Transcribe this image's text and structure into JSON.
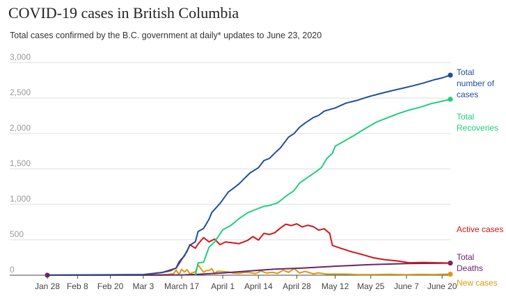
{
  "title": "COVID-19 cases in British Columbia",
  "subtitle": "Total cases confirmed by the B.C. government at daily* updates to June 23, 2020",
  "chart_data": {
    "type": "line",
    "title": "COVID-19 cases in British Columbia",
    "subtitle": "Total cases confirmed by the B.C. government at daily* updates to June 23, 2020",
    "xlabel": "",
    "ylabel": "",
    "ylim": [
      0,
      3000
    ],
    "xlim": [
      "2020-01-28",
      "2020-06-23"
    ],
    "y_ticks": [
      0,
      500,
      1000,
      1500,
      2000,
      2500,
      3000
    ],
    "y_tick_labels": [
      "0",
      "500",
      "1,000",
      "1,500",
      "2,000",
      "2,500",
      "3,000"
    ],
    "x_ticks": [
      "2020-01-28",
      "2020-02-08",
      "2020-02-20",
      "2020-03-03",
      "2020-03-17",
      "2020-04-01",
      "2020-04-14",
      "2020-04-28",
      "2020-05-12",
      "2020-05-25",
      "2020-06-07",
      "2020-06-20"
    ],
    "x_tick_labels": [
      "Jan 28",
      "Feb 8",
      "Feb 20",
      "Mar 3",
      "March 17",
      "April 1",
      "April 14",
      "April 28",
      "May 12",
      "May 25",
      "June 7",
      "June 20"
    ],
    "grid": true,
    "legend": "direct labels at right",
    "series": [
      {
        "name": "Total number of cases",
        "label_lines": [
          "Total",
          "number of",
          "cases"
        ],
        "color": "#1f4e9c",
        "end_marker": true,
        "points": [
          [
            "2020-01-28",
            1
          ],
          [
            "2020-02-20",
            5
          ],
          [
            "2020-03-03",
            9
          ],
          [
            "2020-03-06",
            21
          ],
          [
            "2020-03-10",
            39
          ],
          [
            "2020-03-13",
            64
          ],
          [
            "2020-03-15",
            103
          ],
          [
            "2020-03-16",
            186
          ],
          [
            "2020-03-17",
            231
          ],
          [
            "2020-03-18",
            271
          ],
          [
            "2020-03-19",
            348
          ],
          [
            "2020-03-20",
            424
          ],
          [
            "2020-03-22",
            472
          ],
          [
            "2020-03-23",
            617
          ],
          [
            "2020-03-25",
            659
          ],
          [
            "2020-03-26",
            725
          ],
          [
            "2020-03-27",
            792
          ],
          [
            "2020-03-28",
            884
          ],
          [
            "2020-03-30",
            970
          ],
          [
            "2020-03-31",
            1013
          ],
          [
            "2020-04-01",
            1066
          ],
          [
            "2020-04-03",
            1174
          ],
          [
            "2020-04-05",
            1229
          ],
          [
            "2020-04-07",
            1291
          ],
          [
            "2020-04-09",
            1370
          ],
          [
            "2020-04-11",
            1445
          ],
          [
            "2020-04-14",
            1517
          ],
          [
            "2020-04-16",
            1618
          ],
          [
            "2020-04-18",
            1647
          ],
          [
            "2020-04-20",
            1724
          ],
          [
            "2020-04-22",
            1795
          ],
          [
            "2020-04-25",
            1948
          ],
          [
            "2020-04-27",
            1998
          ],
          [
            "2020-04-29",
            2087
          ],
          [
            "2020-05-01",
            2145
          ],
          [
            "2020-05-04",
            2224
          ],
          [
            "2020-05-06",
            2255
          ],
          [
            "2020-05-08",
            2315
          ],
          [
            "2020-05-12",
            2360
          ],
          [
            "2020-05-16",
            2428
          ],
          [
            "2020-05-20",
            2467
          ],
          [
            "2020-05-24",
            2517
          ],
          [
            "2020-05-28",
            2558
          ],
          [
            "2020-06-01",
            2597
          ],
          [
            "2020-06-05",
            2632
          ],
          [
            "2020-06-09",
            2669
          ],
          [
            "2020-06-13",
            2709
          ],
          [
            "2020-06-17",
            2756
          ],
          [
            "2020-06-20",
            2783
          ],
          [
            "2020-06-23",
            2822
          ]
        ]
      },
      {
        "name": "Total Recoveries",
        "label_lines": [
          "Total",
          "Recoveries"
        ],
        "color": "#1fce7c",
        "end_marker": true,
        "points": [
          [
            "2020-03-22",
            0
          ],
          [
            "2020-03-23",
            173
          ],
          [
            "2020-03-25",
            183
          ],
          [
            "2020-03-27",
            396
          ],
          [
            "2020-03-29",
            469
          ],
          [
            "2020-04-01",
            641
          ],
          [
            "2020-04-04",
            704
          ],
          [
            "2020-04-07",
            800
          ],
          [
            "2020-04-10",
            879
          ],
          [
            "2020-04-13",
            926
          ],
          [
            "2020-04-16",
            973
          ],
          [
            "2020-04-18",
            983
          ],
          [
            "2020-04-21",
            1021
          ],
          [
            "2020-04-24",
            1114
          ],
          [
            "2020-04-27",
            1193
          ],
          [
            "2020-04-29",
            1300
          ],
          [
            "2020-05-02",
            1380
          ],
          [
            "2020-05-05",
            1460
          ],
          [
            "2020-05-07",
            1520
          ],
          [
            "2020-05-09",
            1650
          ],
          [
            "2020-05-11",
            1720
          ],
          [
            "2020-05-12",
            1820
          ],
          [
            "2020-05-15",
            1885
          ],
          [
            "2020-05-19",
            1975
          ],
          [
            "2020-05-23",
            2070
          ],
          [
            "2020-05-27",
            2160
          ],
          [
            "2020-05-31",
            2220
          ],
          [
            "2020-06-04",
            2280
          ],
          [
            "2020-06-08",
            2330
          ],
          [
            "2020-06-12",
            2370
          ],
          [
            "2020-06-16",
            2420
          ],
          [
            "2020-06-20",
            2455
          ],
          [
            "2020-06-23",
            2482
          ]
        ]
      },
      {
        "name": "Active cases",
        "label_lines": [
          "Active cases"
        ],
        "color": "#d0161b",
        "end_marker": false,
        "points": [
          [
            "2020-01-28",
            1
          ],
          [
            "2020-03-03",
            9
          ],
          [
            "2020-03-10",
            39
          ],
          [
            "2020-03-15",
            100
          ],
          [
            "2020-03-17",
            220
          ],
          [
            "2020-03-19",
            340
          ],
          [
            "2020-03-20",
            430
          ],
          [
            "2020-03-22",
            380
          ],
          [
            "2020-03-23",
            440
          ],
          [
            "2020-03-25",
            530
          ],
          [
            "2020-03-27",
            470
          ],
          [
            "2020-03-29",
            510
          ],
          [
            "2020-03-31",
            430
          ],
          [
            "2020-04-02",
            470
          ],
          [
            "2020-04-04",
            460
          ],
          [
            "2020-04-07",
            445
          ],
          [
            "2020-04-10",
            490
          ],
          [
            "2020-04-12",
            545
          ],
          [
            "2020-04-14",
            495
          ],
          [
            "2020-04-16",
            590
          ],
          [
            "2020-04-18",
            575
          ],
          [
            "2020-04-20",
            600
          ],
          [
            "2020-04-22",
            665
          ],
          [
            "2020-04-24",
            720
          ],
          [
            "2020-04-26",
            700
          ],
          [
            "2020-04-28",
            725
          ],
          [
            "2020-04-30",
            680
          ],
          [
            "2020-05-02",
            705
          ],
          [
            "2020-05-04",
            685
          ],
          [
            "2020-05-06",
            635
          ],
          [
            "2020-05-08",
            655
          ],
          [
            "2020-05-10",
            590
          ],
          [
            "2020-05-11",
            420
          ],
          [
            "2020-05-14",
            380
          ],
          [
            "2020-05-18",
            330
          ],
          [
            "2020-05-22",
            290
          ],
          [
            "2020-05-26",
            245
          ],
          [
            "2020-05-30",
            220
          ],
          [
            "2020-06-04",
            200
          ],
          [
            "2020-06-08",
            175
          ],
          [
            "2020-06-13",
            180
          ],
          [
            "2020-06-18",
            175
          ],
          [
            "2020-06-23",
            172
          ]
        ]
      },
      {
        "name": "Total Deaths",
        "label_lines": [
          "Total",
          "Deaths"
        ],
        "color": "#6b2368",
        "end_marker": true,
        "points": [
          [
            "2020-01-28",
            0
          ],
          [
            "2020-03-09",
            1
          ],
          [
            "2020-03-17",
            4
          ],
          [
            "2020-03-23",
            13
          ],
          [
            "2020-04-01",
            31
          ],
          [
            "2020-04-10",
            58
          ],
          [
            "2020-04-20",
            86
          ],
          [
            "2020-04-30",
            101
          ],
          [
            "2020-05-12",
            126
          ],
          [
            "2020-05-25",
            149
          ],
          [
            "2020-06-07",
            165
          ],
          [
            "2020-06-23",
            171
          ]
        ]
      },
      {
        "name": "New cases",
        "label_lines": [
          "New cases"
        ],
        "color": "#d89a0f",
        "end_marker": true,
        "points": [
          [
            "2020-01-28",
            1
          ],
          [
            "2020-03-03",
            3
          ],
          [
            "2020-03-07",
            8
          ],
          [
            "2020-03-10",
            7
          ],
          [
            "2020-03-12",
            13
          ],
          [
            "2020-03-14",
            21
          ],
          [
            "2020-03-15",
            73
          ],
          [
            "2020-03-16",
            11
          ],
          [
            "2020-03-17",
            83
          ],
          [
            "2020-03-18",
            45
          ],
          [
            "2020-03-19",
            77
          ],
          [
            "2020-03-20",
            22
          ],
          [
            "2020-03-22",
            48
          ],
          [
            "2020-03-23",
            145
          ],
          [
            "2020-03-25",
            42
          ],
          [
            "2020-03-26",
            66
          ],
          [
            "2020-03-27",
            67
          ],
          [
            "2020-03-28",
            92
          ],
          [
            "2020-03-29",
            20
          ],
          [
            "2020-03-30",
            55
          ],
          [
            "2020-04-01",
            53
          ],
          [
            "2020-04-03",
            45
          ],
          [
            "2020-04-05",
            29
          ],
          [
            "2020-04-07",
            25
          ],
          [
            "2020-04-09",
            40
          ],
          [
            "2020-04-11",
            35
          ],
          [
            "2020-04-13",
            24
          ],
          [
            "2020-04-15",
            60
          ],
          [
            "2020-04-17",
            29
          ],
          [
            "2020-04-19",
            40
          ],
          [
            "2020-04-21",
            25
          ],
          [
            "2020-04-23",
            71
          ],
          [
            "2020-04-25",
            40
          ],
          [
            "2020-04-27",
            95
          ],
          [
            "2020-04-29",
            30
          ],
          [
            "2020-05-01",
            55
          ],
          [
            "2020-05-04",
            20
          ],
          [
            "2020-05-06",
            33
          ],
          [
            "2020-05-09",
            15
          ],
          [
            "2020-05-12",
            16
          ],
          [
            "2020-05-16",
            15
          ],
          [
            "2020-05-20",
            10
          ],
          [
            "2020-05-25",
            9
          ],
          [
            "2020-06-01",
            12
          ],
          [
            "2020-06-07",
            8
          ],
          [
            "2020-06-12",
            12
          ],
          [
            "2020-06-17",
            10
          ],
          [
            "2020-06-23",
            14
          ]
        ]
      }
    ]
  }
}
